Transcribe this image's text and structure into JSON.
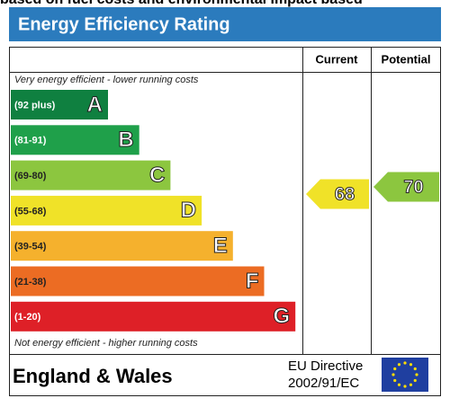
{
  "chart_data": {
    "type": "epc",
    "top_fragment": "based on fuel costs and environmental impact based",
    "title": "Energy Efficiency Rating",
    "columns": [
      "Current",
      "Potential"
    ],
    "top_note": "Very energy efficient - lower running costs",
    "bottom_note": "Not energy efficient - higher running costs",
    "bands": [
      {
        "range": "(92 plus)",
        "letter": "A",
        "color": "#0f8040"
      },
      {
        "range": "(81-91)",
        "letter": "B",
        "color": "#1fa04a"
      },
      {
        "range": "(69-80)",
        "letter": "C",
        "color": "#8cc63f"
      },
      {
        "range": "(55-68)",
        "letter": "D",
        "color": "#f0e228"
      },
      {
        "range": "(39-54)",
        "letter": "E",
        "color": "#f5b12d"
      },
      {
        "range": "(21-38)",
        "letter": "F",
        "color": "#ec6c23"
      },
      {
        "range": "(1-20)",
        "letter": "G",
        "color": "#de2027"
      }
    ],
    "series": [
      {
        "name": "Current",
        "value": 68,
        "color": "#f0e228"
      },
      {
        "name": "Potential",
        "value": 70,
        "color": "#8cc63f"
      }
    ],
    "footer": {
      "region": "England & Wales",
      "directive_line1": "EU Directive",
      "directive_line2": "2002/91/EC"
    }
  }
}
